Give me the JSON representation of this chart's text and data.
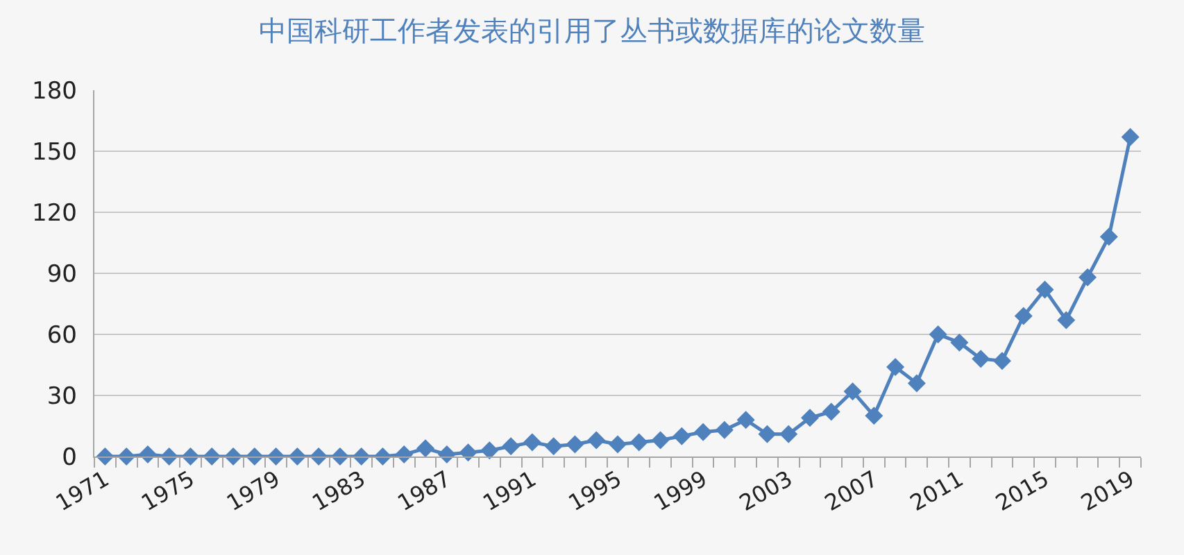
{
  "chart_data": {
    "type": "line",
    "title": "中国科研工作者发表的引用了丛书或数据库的论文数量",
    "categories": [
      "1971",
      null,
      null,
      null,
      "1975",
      null,
      null,
      null,
      "1979",
      null,
      null,
      null,
      "1983",
      null,
      null,
      null,
      "1987",
      null,
      null,
      null,
      "1991",
      null,
      null,
      null,
      "1995",
      null,
      null,
      null,
      "1999",
      null,
      null,
      null,
      "2003",
      null,
      null,
      null,
      "2007",
      null,
      null,
      null,
      "2011",
      null,
      null,
      null,
      "2015",
      null,
      null,
      null,
      "2019"
    ],
    "series": [
      {
        "color": "#4f81bd",
        "values": [
          0,
          0,
          1,
          0,
          0,
          0,
          0,
          0,
          0,
          0,
          0,
          0,
          0,
          0,
          1,
          4,
          1,
          2,
          3,
          5,
          7,
          5,
          6,
          8,
          6,
          7,
          8,
          10,
          12,
          13,
          18,
          11,
          11,
          19,
          22,
          32,
          20,
          44,
          36,
          60,
          56,
          48,
          47,
          69,
          82,
          67,
          88,
          108,
          157
        ]
      }
    ],
    "ylim": [
      0,
      180
    ],
    "yticks": [
      0,
      30,
      60,
      90,
      120,
      150,
      180
    ],
    "grid": "y",
    "marker": "diamond",
    "line_style": "solid"
  }
}
